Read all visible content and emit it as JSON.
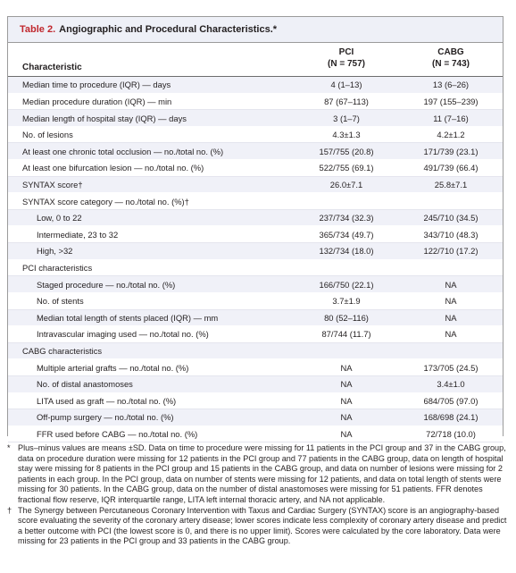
{
  "table": {
    "number": "Table 2.",
    "title": "Angiographic and Procedural Characteristics.*",
    "header": {
      "characteristic": "Characteristic",
      "pci_name": "PCI",
      "pci_n": "(N = 757)",
      "cabg_name": "CABG",
      "cabg_n": "(N = 743)"
    },
    "rows": [
      {
        "label": "Median time to procedure (IQR) — days",
        "pci": "4 (1–13)",
        "cabg": "13 (6–26)",
        "indent": false
      },
      {
        "label": "Median procedure duration (IQR) — min",
        "pci": "87 (67–113)",
        "cabg": "197 (155–239)",
        "indent": false
      },
      {
        "label": "Median length of hospital stay (IQR) — days",
        "pci": "3 (1–7)",
        "cabg": "11 (7–16)",
        "indent": false
      },
      {
        "label": "No. of lesions",
        "pci": "4.3±1.3",
        "cabg": "4.2±1.2",
        "indent": false
      },
      {
        "label": "At least one chronic total occlusion — no./total no. (%)",
        "pci": "157/755 (20.8)",
        "cabg": "171/739 (23.1)",
        "indent": false
      },
      {
        "label": "At least one bifurcation lesion — no./total no. (%)",
        "pci": "522/755 (69.1)",
        "cabg": "491/739 (66.4)",
        "indent": false
      },
      {
        "label": "SYNTAX score†",
        "pci": "26.0±7.1",
        "cabg": "25.8±7.1",
        "indent": false
      },
      {
        "label": "SYNTAX score category — no./total no. (%)†",
        "pci": "",
        "cabg": "",
        "indent": false
      },
      {
        "label": "Low, 0 to 22",
        "pci": "237/734 (32.3)",
        "cabg": "245/710 (34.5)",
        "indent": true
      },
      {
        "label": "Intermediate, 23 to 32",
        "pci": "365/734 (49.7)",
        "cabg": "343/710 (48.3)",
        "indent": true
      },
      {
        "label": "High, >32",
        "pci": "132/734 (18.0)",
        "cabg": "122/710 (17.2)",
        "indent": true
      },
      {
        "label": "PCI characteristics",
        "pci": "",
        "cabg": "",
        "indent": false
      },
      {
        "label": "Staged procedure — no./total no. (%)",
        "pci": "166/750 (22.1)",
        "cabg": "NA",
        "indent": true
      },
      {
        "label": "No. of stents",
        "pci": "3.7±1.9",
        "cabg": "NA",
        "indent": true
      },
      {
        "label": "Median total length of stents placed (IQR) — mm",
        "pci": "80 (52–116)",
        "cabg": "NA",
        "indent": true
      },
      {
        "label": "Intravascular imaging used — no./total no. (%)",
        "pci": "87/744 (11.7)",
        "cabg": "NA",
        "indent": true
      },
      {
        "label": "CABG characteristics",
        "pci": "",
        "cabg": "",
        "indent": false
      },
      {
        "label": "Multiple arterial grafts — no./total no. (%)",
        "pci": "NA",
        "cabg": "173/705 (24.5)",
        "indent": true
      },
      {
        "label": "No. of distal anastomoses",
        "pci": "NA",
        "cabg": "3.4±1.0",
        "indent": true
      },
      {
        "label": "LITA used as graft — no./total no. (%)",
        "pci": "NA",
        "cabg": "684/705 (97.0)",
        "indent": true
      },
      {
        "label": "Off-pump surgery — no./total no. (%)",
        "pci": "NA",
        "cabg": "168/698 (24.1)",
        "indent": true
      },
      {
        "label": "FFR used before CABG — no./total no. (%)",
        "pci": "NA",
        "cabg": "72/718 (10.0)",
        "indent": true
      }
    ]
  },
  "footnotes": [
    {
      "marker": "*",
      "text": "Plus–minus values are means ±SD. Data on time to procedure were missing for 11 patients in the PCI group and 37 in the CABG group, data on procedure duration were missing for 12 patients in the PCI group and 77 patients in the CABG group, data on length of hospital stay were missing for 8 patients in the PCI group and 15 patients in the CABG group, and data on number of lesions were missing for 2 patients in each group. In the PCI group, data on number of stents were missing for 12 patients, and data on total length of stents were missing for 30 patients. In the CABG group, data on the number of distal anastomoses were missing for 51 patients. FFR denotes fractional flow reserve, IQR interquartile range, LITA left internal thoracic artery, and NA not applicable."
    },
    {
      "marker": "†",
      "text": "The Synergy between Percutaneous Coronary Intervention with Taxus and Cardiac Surgery (SYNTAX) score is an angiography-based score evaluating the severity of the coronary artery disease; lower scores indicate less complexity of coronary artery disease and predict a better outcome with PCI (the lowest score is 0, and there is no upper limit). Scores were calculated by the core laboratory. Data were missing for 23 patients in the PCI group and 33 patients in the CABG group."
    }
  ]
}
